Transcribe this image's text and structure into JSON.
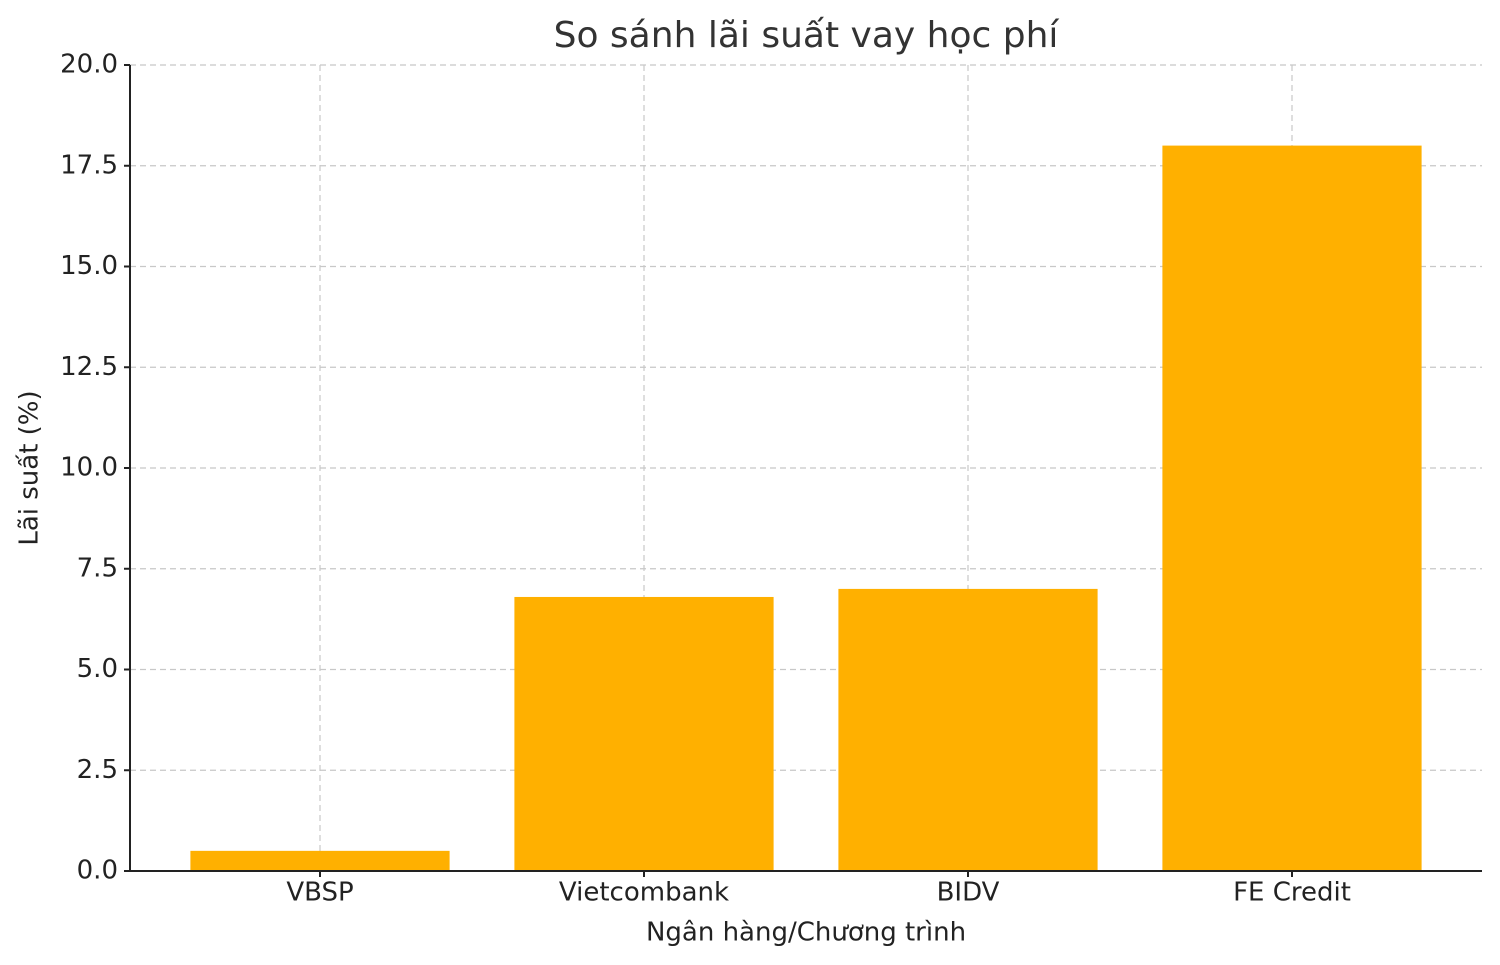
{
  "chart_data": {
    "type": "bar",
    "title": "So sánh lãi suất vay học phí",
    "x_label": "Ngân hàng/Chương trình",
    "y_label": "Lãi suất (%)",
    "categories": [
      "VBSP",
      "Vietcombank",
      "BIDV",
      "FE Credit"
    ],
    "values": [
      0.5,
      6.8,
      7.0,
      18.0
    ],
    "color": "#ffb000",
    "ylim": [
      0,
      20
    ],
    "yticks": [
      {
        "value": 0,
        "label": "0.0"
      },
      {
        "value": 2.5,
        "label": "2.5"
      },
      {
        "value": 5,
        "label": "5.0"
      },
      {
        "value": 7.5,
        "label": "7.5"
      },
      {
        "value": 10,
        "label": "10.0"
      },
      {
        "value": 12.5,
        "label": "12.5"
      },
      {
        "value": 15,
        "label": "15.0"
      },
      {
        "value": 17.5,
        "label": "17.5"
      },
      {
        "value": 20,
        "label": "20.0"
      }
    ],
    "grid": true
  }
}
